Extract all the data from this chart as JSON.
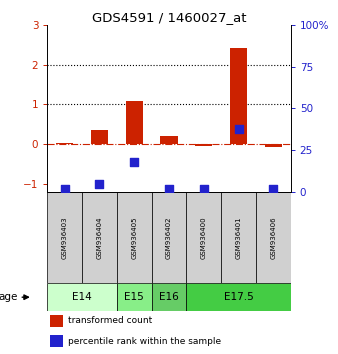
{
  "title": "GDS4591 / 1460027_at",
  "samples": [
    "GSM936403",
    "GSM936404",
    "GSM936405",
    "GSM936402",
    "GSM936400",
    "GSM936401",
    "GSM936406"
  ],
  "transformed_counts": [
    0.03,
    0.35,
    1.1,
    0.22,
    -0.03,
    2.42,
    -0.07
  ],
  "percentile_ranks_pct": [
    2,
    5,
    18,
    2,
    2,
    38,
    2
  ],
  "left_ylim": [
    -1.2,
    3.0
  ],
  "right_ylim": [
    0,
    100
  ],
  "left_yticks": [
    -1,
    0,
    1,
    2,
    3
  ],
  "right_yticks": [
    0,
    25,
    50,
    75,
    100
  ],
  "right_yticklabels": [
    "0",
    "25",
    "50",
    "75",
    "100%"
  ],
  "hlines_dotted": [
    1,
    2
  ],
  "hline_dashdot": 0,
  "bar_color": "#cc2200",
  "dot_color": "#2222cc",
  "age_groups": [
    {
      "label": "E14",
      "samples": [
        0,
        1
      ],
      "color": "#ccffcc"
    },
    {
      "label": "E15",
      "samples": [
        2
      ],
      "color": "#88ee88"
    },
    {
      "label": "E16",
      "samples": [
        3
      ],
      "color": "#66cc66"
    },
    {
      "label": "E17.5",
      "samples": [
        4,
        5,
        6
      ],
      "color": "#44cc44"
    }
  ],
  "age_label": "age",
  "legend_items": [
    {
      "label": "transformed count",
      "color": "#cc2200"
    },
    {
      "label": "percentile rank within the sample",
      "color": "#2222cc"
    }
  ],
  "bar_width": 0.5,
  "dot_size": 40,
  "left_tick_color": "#cc2200",
  "right_tick_color": "#2222cc",
  "sample_box_color": "#d0d0d0"
}
